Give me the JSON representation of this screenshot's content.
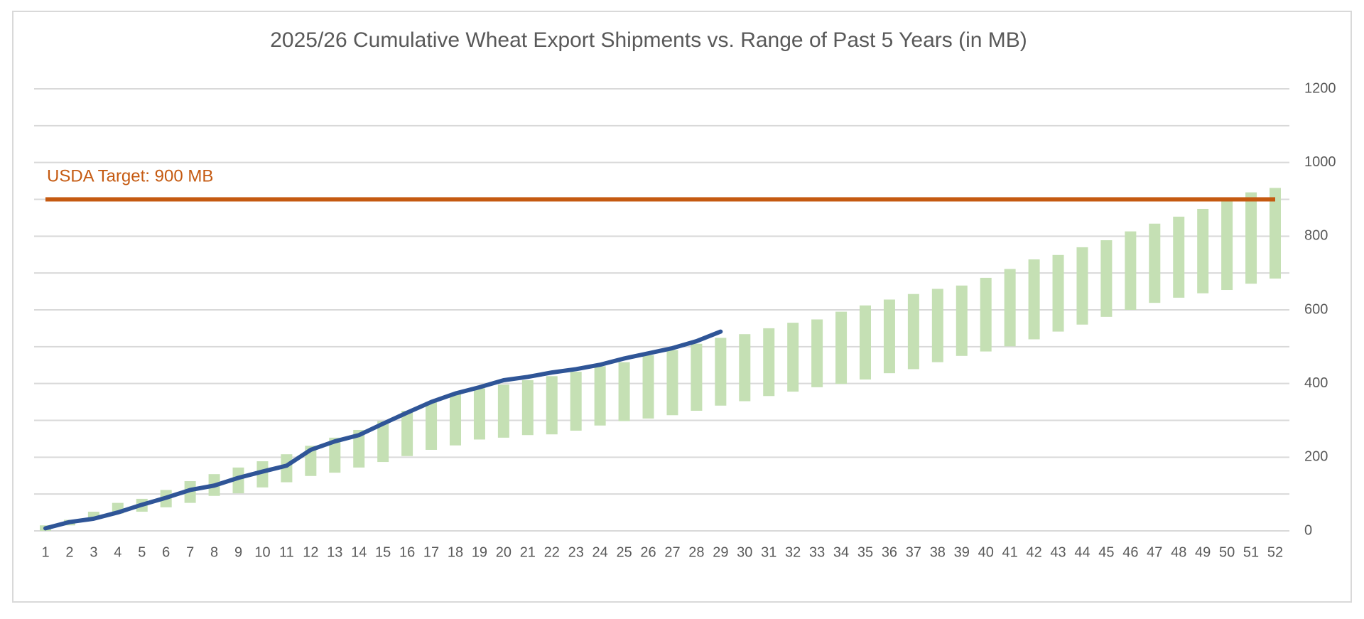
{
  "chart_data": {
    "type": "range-bar-line",
    "title": "2025/26 Cumulative Wheat Export Shipments vs. Range of Past 5 Years (in MB)",
    "categories": [
      1,
      2,
      3,
      4,
      5,
      6,
      7,
      8,
      9,
      10,
      11,
      12,
      13,
      14,
      15,
      16,
      17,
      18,
      19,
      20,
      21,
      22,
      23,
      24,
      25,
      26,
      27,
      28,
      29,
      30,
      31,
      32,
      33,
      34,
      35,
      36,
      37,
      38,
      39,
      40,
      41,
      42,
      43,
      44,
      45,
      46,
      47,
      48,
      49,
      50,
      51,
      52
    ],
    "range": {
      "color": "#c5e0b4",
      "low": [
        0,
        15,
        31,
        47,
        52,
        64,
        76,
        95,
        102,
        118,
        132,
        149,
        158,
        172,
        187,
        203,
        220,
        232,
        248,
        253,
        260,
        262,
        272,
        286,
        298,
        305,
        314,
        326,
        340,
        352,
        366,
        378,
        390,
        399,
        411,
        428,
        439,
        458,
        475,
        487,
        501,
        520,
        541,
        560,
        581,
        600,
        619,
        633,
        645,
        654,
        671,
        685
      ],
      "high": [
        15,
        30,
        52,
        76,
        87,
        111,
        135,
        154,
        172,
        189,
        208,
        231,
        253,
        274,
        298,
        326,
        350,
        371,
        387,
        397,
        409,
        420,
        432,
        447,
        458,
        477,
        491,
        508,
        524,
        534,
        550,
        565,
        574,
        595,
        612,
        628,
        643,
        657,
        666,
        687,
        711,
        737,
        749,
        770,
        789,
        813,
        834,
        853,
        874,
        900,
        919,
        931
      ]
    },
    "line": {
      "color": "#2f5597",
      "values": [
        7,
        24,
        33,
        50,
        71,
        90,
        111,
        123,
        144,
        161,
        177,
        220,
        243,
        260,
        291,
        321,
        350,
        373,
        390,
        409,
        418,
        430,
        439,
        451,
        468,
        482,
        496,
        515,
        541
      ]
    },
    "target": {
      "value": 900,
      "label": "USDA Target: 900 MB",
      "color": "#c55a11"
    },
    "ylim": [
      0,
      1200
    ],
    "yticks": [
      0,
      200,
      400,
      600,
      800,
      1000,
      1200
    ],
    "ygrid": [
      0,
      100,
      200,
      300,
      400,
      500,
      600,
      700,
      800,
      900,
      1000,
      1100,
      1200
    ]
  }
}
